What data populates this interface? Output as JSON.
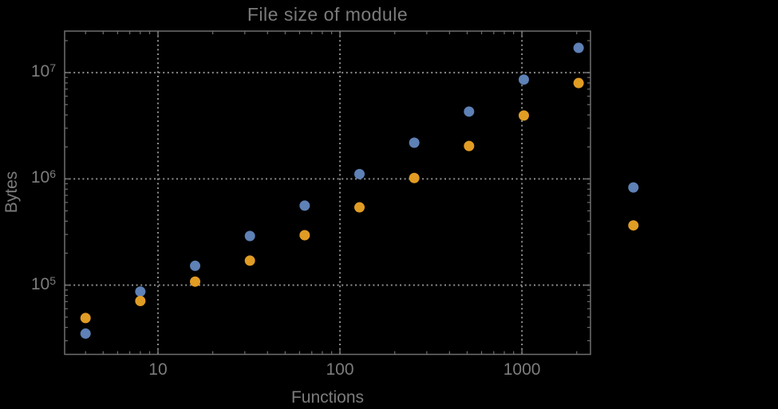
{
  "page": {
    "background_color": "#000000",
    "text_color": "#7c7c7c"
  },
  "chart_data": {
    "type": "scatter",
    "title": "File size of module",
    "xlabel": "Functions",
    "ylabel": "Bytes",
    "x_scale": "log",
    "y_scale": "log",
    "xlim": [
      3.07,
      2380
    ],
    "ylim": [
      22300,
      24600000
    ],
    "grid": "dotted",
    "legend": "none",
    "x_gridlines": [
      10,
      100,
      1000
    ],
    "y_gridlines": [
      100000,
      1000000,
      10000000
    ],
    "x_ticks": [
      {
        "value": 10,
        "label": "10"
      },
      {
        "value": 100,
        "label": "100"
      },
      {
        "value": 1000,
        "label": "1000"
      }
    ],
    "y_ticks": [
      {
        "value": 100000,
        "mantissa": "10",
        "exponent": "5"
      },
      {
        "value": 1000000,
        "mantissa": "10",
        "exponent": "6"
      },
      {
        "value": 10000000,
        "mantissa": "10",
        "exponent": "7"
      }
    ],
    "x": [
      4,
      8,
      16,
      32,
      64,
      128,
      256,
      512,
      1024,
      2048,
      4096
    ],
    "series": [
      {
        "name": "blue-series",
        "color": "#5E81B6",
        "values": [
          35000,
          87000,
          152000,
          290000,
          560000,
          1110000,
          2190000,
          4300000,
          8600000,
          17100000,
          830000
        ]
      },
      {
        "name": "orange-series",
        "color": "#E19C24",
        "values": [
          49000,
          71000,
          108000,
          170000,
          295000,
          540000,
          1020000,
          2040000,
          3950000,
          7980000,
          365000
        ]
      }
    ],
    "marker_diameter_px": 13,
    "colors": {
      "frame": "#6f6f6f",
      "grid": "#8d8d8d",
      "text": "#7c7c7c"
    }
  }
}
